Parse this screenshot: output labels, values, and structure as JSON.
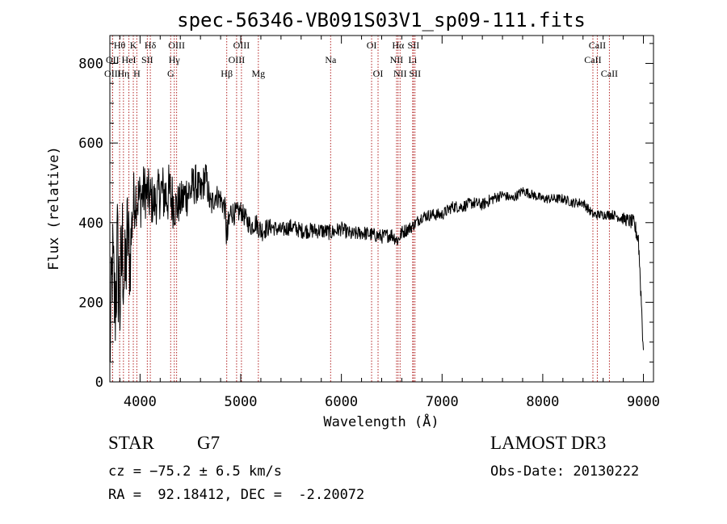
{
  "chart_data": {
    "type": "line",
    "title": "spec-56346-VB091S03V1_sp09-111.fits",
    "xlabel": "Wavelength (Å)",
    "ylabel": "Flux (relative)",
    "xlim": [
      3700,
      9100
    ],
    "ylim": [
      0,
      870
    ],
    "xticks": [
      4000,
      5000,
      6000,
      7000,
      8000,
      9000
    ],
    "xtick_labels": [
      "4000",
      "5000",
      "6000",
      "7000",
      "8000",
      "9000"
    ],
    "yticks": [
      0,
      200,
      400,
      600,
      800
    ],
    "ytick_labels": [
      "0",
      "200",
      "400",
      "600",
      "800"
    ],
    "grid": false,
    "series": [
      {
        "name": "spectrum",
        "color": "#000000",
        "wavelength": [
          3700,
          3725,
          3750,
          3775,
          3800,
          3825,
          3850,
          3875,
          3900,
          3925,
          3950,
          3975,
          4000,
          4050,
          4100,
          4150,
          4200,
          4250,
          4300,
          4350,
          4400,
          4450,
          4500,
          4550,
          4600,
          4650,
          4700,
          4750,
          4800,
          4850,
          4860,
          4900,
          4950,
          5000,
          5050,
          5100,
          5150,
          5200,
          5300,
          5400,
          5500,
          5600,
          5700,
          5800,
          5900,
          6000,
          6100,
          6200,
          6300,
          6400,
          6500,
          6560,
          6600,
          6700,
          6800,
          6900,
          7000,
          7100,
          7200,
          7300,
          7400,
          7500,
          7600,
          7700,
          7800,
          7900,
          8000,
          8100,
          8200,
          8300,
          8400,
          8500,
          8600,
          8700,
          8800,
          8900,
          8950,
          8980,
          9000
        ],
        "flux": [
          60,
          300,
          180,
          320,
          200,
          340,
          240,
          380,
          300,
          430,
          470,
          460,
          460,
          480,
          460,
          450,
          480,
          470,
          470,
          440,
          450,
          470,
          480,
          500,
          470,
          520,
          440,
          470,
          460,
          430,
          350,
          430,
          420,
          430,
          410,
          390,
          400,
          380,
          390,
          380,
          390,
          380,
          380,
          380,
          375,
          385,
          370,
          375,
          370,
          365,
          370,
          355,
          375,
          390,
          415,
          420,
          420,
          440,
          440,
          450,
          445,
          460,
          470,
          460,
          480,
          470,
          460,
          460,
          460,
          450,
          450,
          420,
          420,
          420,
          410,
          400,
          360,
          200,
          80
        ],
        "noise_amp": [
          120,
          150,
          160,
          170,
          160,
          170,
          150,
          130,
          120,
          90,
          80,
          70,
          80,
          70,
          70,
          60,
          70,
          80,
          80,
          60,
          50,
          60,
          60,
          50,
          50,
          40,
          40,
          30,
          30,
          30,
          60,
          30,
          30,
          25,
          25,
          25,
          25,
          30,
          20,
          20,
          20,
          20,
          20,
          20,
          20,
          18,
          18,
          18,
          18,
          18,
          18,
          18,
          18,
          15,
          15,
          15,
          15,
          15,
          15,
          15,
          15,
          15,
          12,
          12,
          12,
          12,
          12,
          12,
          12,
          12,
          12,
          12,
          12,
          12,
          15,
          20,
          25,
          30,
          30
        ]
      }
    ],
    "lines": [
      {
        "name": "Hθ",
        "wavelength": 3797,
        "row": 1
      },
      {
        "name": "K",
        "wavelength": 3933,
        "row": 1
      },
      {
        "name": "Hδ",
        "wavelength": 4102,
        "row": 1
      },
      {
        "name": "OIII",
        "wavelength": 4363,
        "row": 1
      },
      {
        "name": "OIII",
        "wavelength": 5007,
        "row": 1
      },
      {
        "name": "OI",
        "wavelength": 6300,
        "row": 1
      },
      {
        "name": "Hα",
        "wavelength": 6563,
        "row": 1
      },
      {
        "name": "SII",
        "wavelength": 6716,
        "row": 1
      },
      {
        "name": "CaII",
        "wavelength": 8542,
        "row": 1
      },
      {
        "name": "OII",
        "wavelength": 3727,
        "row": 2
      },
      {
        "name": "HeI",
        "wavelength": 3889,
        "row": 2
      },
      {
        "name": "SII",
        "wavelength": 4072,
        "row": 2
      },
      {
        "name": "Hγ",
        "wavelength": 4340,
        "row": 2
      },
      {
        "name": "OIII",
        "wavelength": 4959,
        "row": 2
      },
      {
        "name": "Na",
        "wavelength": 5893,
        "row": 2
      },
      {
        "name": "NII",
        "wavelength": 6548,
        "row": 2
      },
      {
        "name": "Li",
        "wavelength": 6708,
        "row": 2
      },
      {
        "name": "CaII",
        "wavelength": 8498,
        "row": 2
      },
      {
        "name": "OIII",
        "wavelength": 3727,
        "row": 3
      },
      {
        "name": "Hη",
        "wavelength": 3835,
        "row": 3
      },
      {
        "name": "H",
        "wavelength": 3968,
        "row": 3
      },
      {
        "name": "G",
        "wavelength": 4304,
        "row": 3
      },
      {
        "name": "Hβ",
        "wavelength": 4861,
        "row": 3
      },
      {
        "name": "Mg",
        "wavelength": 5175,
        "row": 3
      },
      {
        "name": "OI",
        "wavelength": 6364,
        "row": 3
      },
      {
        "name": "NII",
        "wavelength": 6583,
        "row": 3
      },
      {
        "name": "SII",
        "wavelength": 6731,
        "row": 3
      },
      {
        "name": "CaII",
        "wavelength": 8662,
        "row": 3
      }
    ],
    "line_color": "#b22222"
  },
  "info": {
    "obj_class": "STAR",
    "subclass": "G7",
    "survey": "LAMOST DR3",
    "cz": "cz = −75.2 ± 6.5 km/s",
    "obs_date": "Obs-Date: 20130222",
    "radec": "RA =  92.18412, DEC =  -2.20072"
  }
}
